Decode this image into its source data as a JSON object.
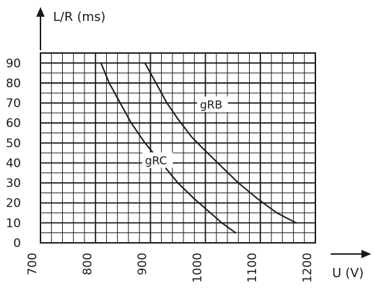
{
  "chart_data": {
    "type": "line",
    "title": "",
    "xlabel": "U (V)",
    "ylabel": "L/R (ms)",
    "xlim": [
      700,
      1200
    ],
    "ylim": [
      0,
      95
    ],
    "grid": true,
    "x_ticks": [
      "700",
      "800",
      "900",
      "1000",
      "1100",
      "1200"
    ],
    "y_ticks": [
      "0",
      "10",
      "20",
      "30",
      "40",
      "50",
      "60",
      "70",
      "80",
      "90"
    ],
    "series": [
      {
        "name": "gRC",
        "x": [
          810,
          825,
          845,
          865,
          890,
          920,
          950,
          980,
          1005,
          1030,
          1055
        ],
        "y": [
          90,
          80,
          70,
          60,
          50,
          40,
          30,
          22,
          16,
          10,
          5
        ],
        "label_at": [
          890,
          40
        ]
      },
      {
        "name": "gRB",
        "x": [
          890,
          910,
          930,
          950,
          975,
          1000,
          1030,
          1060,
          1095,
          1130,
          1165
        ],
        "y": [
          90,
          80,
          70,
          62,
          53,
          46,
          38,
          30,
          22,
          15,
          10
        ],
        "label_at": [
          990,
          68
        ]
      }
    ]
  }
}
